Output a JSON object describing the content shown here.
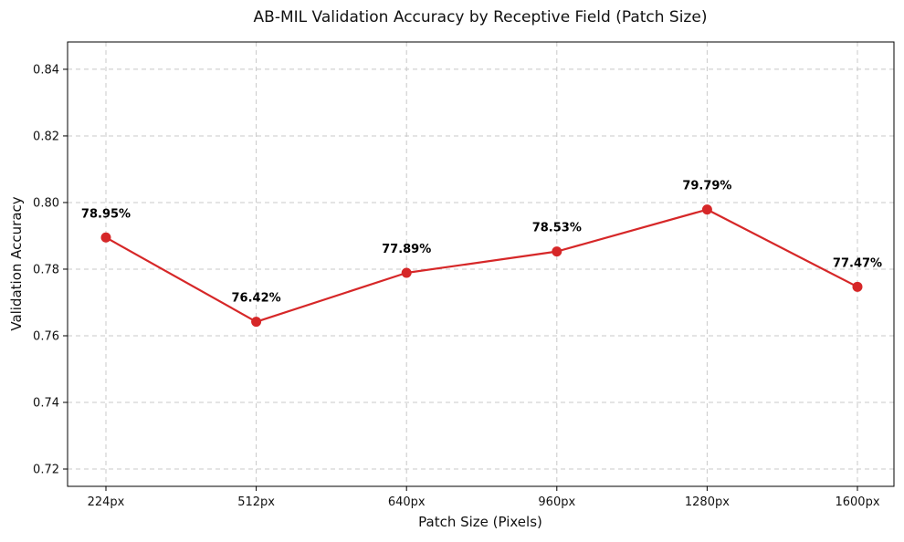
{
  "chart_data": {
    "type": "line",
    "title": "AB-MIL Validation Accuracy by Receptive Field (Patch Size)",
    "xlabel": "Patch Size (Pixels)",
    "ylabel": "Validation Accuracy",
    "categories": [
      "224px",
      "512px",
      "640px",
      "960px",
      "1280px",
      "1600px"
    ],
    "series": [
      {
        "values": [
          0.7895,
          0.7642,
          0.7789,
          0.7853,
          0.7979,
          0.7747
        ],
        "labels": [
          "78.95%",
          "76.42%",
          "77.89%",
          "78.53%",
          "79.79%",
          "77.47%"
        ],
        "color": "#d62728"
      }
    ],
    "ylim": [
      0.7148,
      0.8482
    ],
    "yticks": [
      "0.72",
      "0.74",
      "0.76",
      "0.78",
      "0.80",
      "0.82",
      "0.84"
    ],
    "yticks_values": [
      0.72,
      0.74,
      0.76,
      0.78,
      0.8,
      0.82,
      0.84
    ],
    "grid": true
  }
}
